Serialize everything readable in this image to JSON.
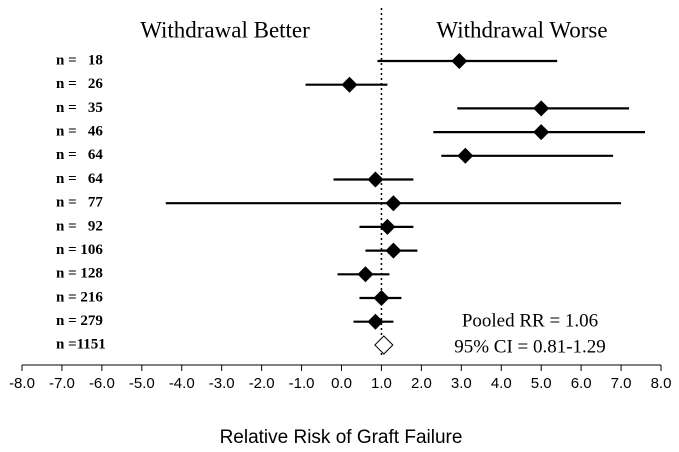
{
  "chart_data": {
    "type": "forest",
    "left_header": "Withdrawal Better",
    "right_header": "Withdrawal Worse",
    "xlabel": "Relative Risk of Graft Failure",
    "xlim": [
      -8,
      8
    ],
    "xticks": [
      {
        "value": -8,
        "label": "-8.0"
      },
      {
        "value": -7,
        "label": "-7.0"
      },
      {
        "value": -6,
        "label": "-6.0"
      },
      {
        "value": -5,
        "label": "-5.0"
      },
      {
        "value": -4,
        "label": "-4.0"
      },
      {
        "value": -3,
        "label": "-3.0"
      },
      {
        "value": -2,
        "label": "-2.0"
      },
      {
        "value": -1,
        "label": "-1.0"
      },
      {
        "value": 0,
        "label": "0.0"
      },
      {
        "value": 1,
        "label": "1.0"
      },
      {
        "value": 2,
        "label": "2.0"
      },
      {
        "value": 3,
        "label": "3.0"
      },
      {
        "value": 4,
        "label": "4.0"
      },
      {
        "value": 5,
        "label": "5.0"
      },
      {
        "value": 6,
        "label": "6.0"
      },
      {
        "value": 7,
        "label": "7.0"
      },
      {
        "value": 8,
        "label": "8.0"
      }
    ],
    "reference": 1,
    "labels": [
      "n =   18",
      "n =   26",
      "n =   35",
      "n =   46",
      "n =   64",
      "n =   64",
      "n =   77",
      "n =   92",
      "n = 106",
      "n = 128",
      "n = 216",
      "n = 279"
    ],
    "estimates": [
      2.95,
      0.2,
      5.0,
      5.0,
      3.1,
      0.85,
      1.3,
      1.15,
      1.3,
      0.6,
      1.0,
      0.85
    ],
    "ci_low": [
      0.9,
      -0.9,
      2.9,
      2.3,
      2.5,
      -0.2,
      -4.4,
      0.45,
      0.6,
      -0.1,
      0.45,
      0.3
    ],
    "ci_high": [
      5.4,
      1.15,
      7.2,
      7.6,
      6.8,
      1.8,
      7.0,
      1.8,
      1.9,
      1.2,
      1.5,
      1.3
    ],
    "pooled_label": "n =1151",
    "pooled_estimate": 1.06,
    "pooled_text": "Pooled RR = 1.06",
    "pooled_ci_text": "95% CI = 0.81-1.29",
    "color": "#000000"
  }
}
